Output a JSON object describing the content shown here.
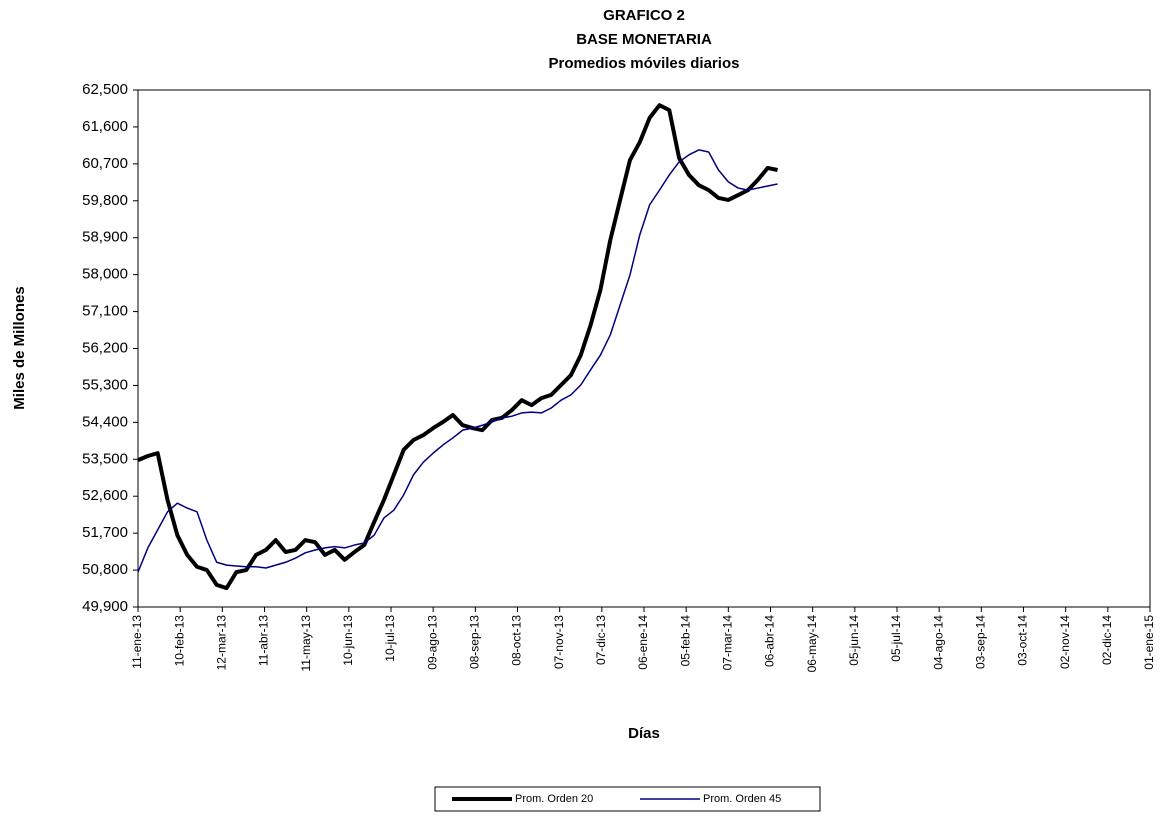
{
  "chart_data": {
    "type": "line",
    "title": [
      "GRAFICO 2",
      "BASE MONETARIA",
      "Promedios móviles diarios"
    ],
    "x_label": "Días",
    "y_label": "Miles de Millones",
    "x": [
      "2013-01-11",
      "2013-01-18",
      "2013-01-25",
      "2013-02-01",
      "2013-02-08",
      "2013-02-15",
      "2013-02-22",
      "2013-03-01",
      "2013-03-08",
      "2013-03-15",
      "2013-03-22",
      "2013-03-29",
      "2013-04-05",
      "2013-04-12",
      "2013-04-19",
      "2013-04-26",
      "2013-05-03",
      "2013-05-10",
      "2013-05-17",
      "2013-05-24",
      "2013-05-31",
      "2013-06-07",
      "2013-06-14",
      "2013-06-21",
      "2013-06-28",
      "2013-07-05",
      "2013-07-12",
      "2013-07-19",
      "2013-07-26",
      "2013-08-02",
      "2013-08-09",
      "2013-08-16",
      "2013-08-23",
      "2013-08-30",
      "2013-09-06",
      "2013-09-13",
      "2013-09-20",
      "2013-09-27",
      "2013-10-04",
      "2013-10-11",
      "2013-10-18",
      "2013-10-25",
      "2013-11-01",
      "2013-11-08",
      "2013-11-15",
      "2013-11-22",
      "2013-11-29",
      "2013-12-06",
      "2013-12-13",
      "2013-12-20",
      "2013-12-27",
      "2014-01-03",
      "2014-01-10",
      "2014-01-17",
      "2014-01-24",
      "2014-01-31",
      "2014-02-07",
      "2014-02-14",
      "2014-02-21",
      "2014-02-28",
      "2014-03-07",
      "2014-03-14",
      "2014-03-21",
      "2014-03-28",
      "2014-04-04",
      "2014-04-11"
    ],
    "series": [
      {
        "name": "Prom. Orden 20",
        "color": "#000000",
        "values": [
          53480,
          53580,
          53650,
          52510,
          51650,
          51170,
          50880,
          50800,
          50440,
          50360,
          50750,
          50800,
          51170,
          51290,
          51530,
          51240,
          51290,
          51530,
          51480,
          51170,
          51290,
          51050,
          51240,
          51410,
          51970,
          52510,
          53120,
          53730,
          53970,
          54090,
          54260,
          54410,
          54580,
          54330,
          54260,
          54210,
          54460,
          54510,
          54700,
          54940,
          54820,
          54990,
          55070,
          55310,
          55550,
          56040,
          56770,
          57630,
          58840,
          59820,
          60790,
          61230,
          61820,
          62130,
          62010,
          60840,
          60430,
          60180,
          60060,
          59870,
          59820,
          59940,
          60060,
          60310,
          60600,
          60550
        ]
      },
      {
        "name": "Prom. Orden 45",
        "color": "#000080",
        "values": [
          50750,
          51340,
          51780,
          52220,
          52430,
          52310,
          52220,
          51530,
          50990,
          50920,
          50900,
          50880,
          50880,
          50850,
          50920,
          50990,
          51090,
          51220,
          51290,
          51340,
          51370,
          51340,
          51410,
          51460,
          51650,
          52070,
          52260,
          52630,
          53120,
          53430,
          53650,
          53850,
          54020,
          54210,
          54260,
          54330,
          54410,
          54510,
          54550,
          54630,
          54650,
          54630,
          54750,
          54940,
          55070,
          55310,
          55680,
          56040,
          56530,
          57260,
          57990,
          58970,
          59700,
          60060,
          60430,
          60750,
          60920,
          61040,
          60990,
          60550,
          60260,
          60110,
          60060,
          60110,
          60160,
          60210
        ]
      }
    ],
    "xlim": [
      "2013-01-11",
      "2015-01-01"
    ],
    "xticks": [
      {
        "value": "2013-01-11",
        "label": "11-ene-13"
      },
      {
        "value": "2013-02-10",
        "label": "10-feb-13"
      },
      {
        "value": "2013-03-12",
        "label": "12-mar-13"
      },
      {
        "value": "2013-04-11",
        "label": "11-abr-13"
      },
      {
        "value": "2013-05-11",
        "label": "11-may-13"
      },
      {
        "value": "2013-06-10",
        "label": "10-jun-13"
      },
      {
        "value": "2013-07-10",
        "label": "10-jul-13"
      },
      {
        "value": "2013-08-09",
        "label": "09-ago-13"
      },
      {
        "value": "2013-09-08",
        "label": "08-sep-13"
      },
      {
        "value": "2013-10-08",
        "label": "08-oct-13"
      },
      {
        "value": "2013-11-07",
        "label": "07-nov-13"
      },
      {
        "value": "2013-12-07",
        "label": "07-dic-13"
      },
      {
        "value": "2014-01-06",
        "label": "06-ene-14"
      },
      {
        "value": "2014-02-05",
        "label": "05-feb-14"
      },
      {
        "value": "2014-03-07",
        "label": "07-mar-14"
      },
      {
        "value": "2014-04-06",
        "label": "06-abr-14"
      },
      {
        "value": "2014-05-06",
        "label": "06-may-14"
      },
      {
        "value": "2014-06-05",
        "label": "05-jun-14"
      },
      {
        "value": "2014-07-05",
        "label": "05-jul-14"
      },
      {
        "value": "2014-08-04",
        "label": "04-ago-14"
      },
      {
        "value": "2014-09-03",
        "label": "03-sep-14"
      },
      {
        "value": "2014-10-03",
        "label": "03-oct-14"
      },
      {
        "value": "2014-11-02",
        "label": "02-nov-14"
      },
      {
        "value": "2014-12-02",
        "label": "02-dic-14"
      },
      {
        "value": "2015-01-01",
        "label": "01-ene-15"
      }
    ],
    "ylim": [
      49900,
      62500
    ],
    "yticks": [
      {
        "value": 49900,
        "label": "49,900"
      },
      {
        "value": 50800,
        "label": "50,800"
      },
      {
        "value": 51700,
        "label": "51,700"
      },
      {
        "value": 52600,
        "label": "52,600"
      },
      {
        "value": 53500,
        "label": "53,500"
      },
      {
        "value": 54400,
        "label": "54,400"
      },
      {
        "value": 55300,
        "label": "55,300"
      },
      {
        "value": 56200,
        "label": "56,200"
      },
      {
        "value": 57100,
        "label": "57,100"
      },
      {
        "value": 58000,
        "label": "58,000"
      },
      {
        "value": 58900,
        "label": "58,900"
      },
      {
        "value": 59800,
        "label": "59,800"
      },
      {
        "value": 60700,
        "label": "60,700"
      },
      {
        "value": 61600,
        "label": "61,600"
      },
      {
        "value": 62500,
        "label": "62,500"
      }
    ],
    "grid": false,
    "legend": "bottom"
  }
}
